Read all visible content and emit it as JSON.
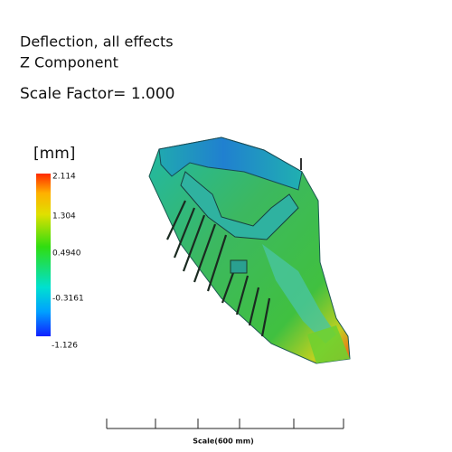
{
  "header": {
    "title": "Deflection, all effects",
    "component": "Z Component",
    "scale_factor": "Scale Factor= 1.000"
  },
  "legend": {
    "unit": "[mm]",
    "labels": [
      "2.114",
      "1.304",
      "0.4940",
      "-0.3161",
      "-1.126"
    ]
  },
  "scale_bar": {
    "label": "Scale(600 mm)"
  }
}
